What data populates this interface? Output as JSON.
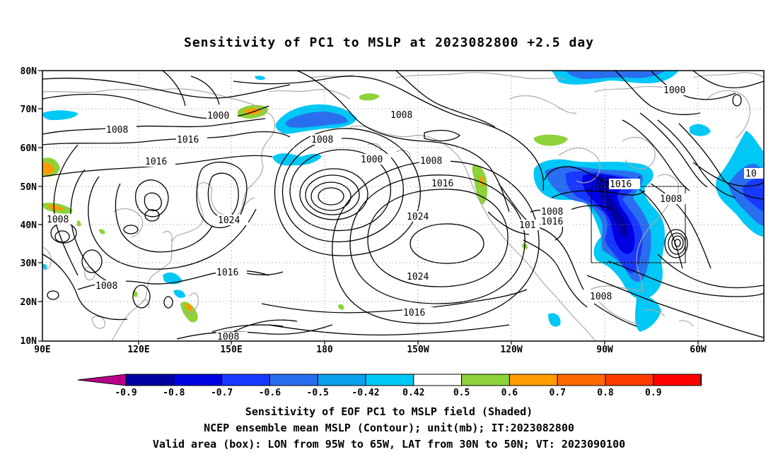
{
  "title": "Sensitivity of PC1 to MSLP at 2023082800 +2.5 day",
  "lat_labels": [
    "80N",
    "70N",
    "60N",
    "50N",
    "40N",
    "30N",
    "20N",
    "10N"
  ],
  "lon_labels": [
    "90E",
    "120E",
    "150E",
    "180",
    "150W",
    "120W",
    "90W",
    "60W"
  ],
  "contour_labels": [
    "1000",
    "1008",
    "1016",
    "1024",
    "101",
    "10"
  ],
  "colorbar": {
    "labels": [
      "-0.9",
      "-0.8",
      "-0.7",
      "-0.6",
      "-0.5",
      "-0.42",
      "0.42",
      "0.5",
      "0.6",
      "0.7",
      "0.8",
      "0.9"
    ],
    "colors": [
      "#b8008a",
      "#0000a0",
      "#0000e0",
      "#1838ff",
      "#2a6ef0",
      "#0aa0ee",
      "#00c8f6",
      "#ffffff",
      "#8ed23a",
      "#ff9c00",
      "#ff6a00",
      "#ff3c00",
      "#ff0000",
      "#ff9ec8"
    ]
  },
  "valid_box": {
    "lon_min": -95,
    "lon_max": -65,
    "lat_min": 30,
    "lat_max": 50
  },
  "captions": {
    "line1": "Sensitivity of EOF PC1 to MSLP field (Shaded)",
    "line2": "NCEP ensemble mean MSLP (Contour); unit(mb); IT:2023082800",
    "line3": "Valid area (box): LON from 95W to 65W, LAT from 30N to 50N; VT: 2023090100"
  }
}
